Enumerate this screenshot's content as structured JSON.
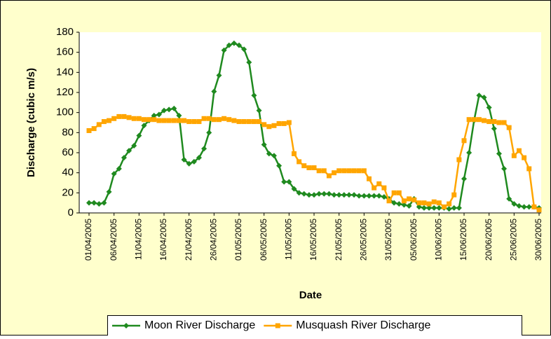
{
  "chart_data": {
    "type": "line",
    "y_label": "Discharge (cubic m/s)",
    "x_label": "Date",
    "categories": [
      "01/04/2005",
      null,
      null,
      null,
      null,
      "06/04/2005",
      null,
      null,
      null,
      null,
      "11/04/2005",
      null,
      null,
      null,
      null,
      "16/04/2005",
      null,
      null,
      null,
      null,
      "21/04/2005",
      null,
      null,
      null,
      null,
      "26/04/2005",
      null,
      null,
      null,
      null,
      "01/05/2005",
      null,
      null,
      null,
      null,
      "06/05/2005",
      null,
      null,
      null,
      null,
      "11/05/2005",
      null,
      null,
      null,
      null,
      "16/05/2005",
      null,
      null,
      null,
      null,
      "21/05/2005",
      null,
      null,
      null,
      null,
      "26/05/2005",
      null,
      null,
      null,
      null,
      "31/05/2005",
      null,
      null,
      null,
      null,
      "05/06/2005",
      null,
      null,
      null,
      null,
      "10/06/2005",
      null,
      null,
      null,
      null,
      "15/06/2005",
      null,
      null,
      null,
      null,
      "20/06/2005",
      null,
      null,
      null,
      null,
      "25/06/2005",
      null,
      null,
      null,
      null,
      "30/06/2005"
    ],
    "series": [
      {
        "name": "Moon River Discharge",
        "color": "#1f8a1f",
        "marker": "diamond",
        "values": [
          10,
          10,
          9,
          10,
          21,
          39,
          44,
          55,
          62,
          67,
          77,
          87,
          92,
          97,
          98,
          102,
          103,
          104,
          97,
          53,
          49,
          51,
          55,
          64,
          80,
          121,
          137,
          162,
          167,
          169,
          167,
          163,
          150,
          117,
          102,
          68,
          59,
          57,
          47,
          31,
          31,
          24,
          20,
          19,
          18,
          18,
          19,
          19,
          19,
          18,
          18,
          18,
          18,
          18,
          17,
          17,
          17,
          17,
          17,
          16,
          14,
          10,
          9,
          8,
          7,
          14,
          6,
          5,
          5,
          5,
          5,
          5,
          4,
          5,
          5,
          34,
          60,
          92,
          117,
          115,
          105,
          84,
          59,
          44,
          14,
          9,
          7,
          6,
          6,
          6,
          5
        ]
      },
      {
        "name": "Musquash River Discharge",
        "color": "#ffa500",
        "marker": "square",
        "values": [
          82,
          84,
          88,
          91,
          92,
          94,
          96,
          96,
          95,
          94,
          94,
          93,
          93,
          93,
          92,
          92,
          92,
          92,
          92,
          92,
          91,
          91,
          91,
          94,
          94,
          93,
          93,
          94,
          93,
          92,
          91,
          91,
          91,
          91,
          91,
          88,
          86,
          87,
          89,
          89,
          90,
          59,
          51,
          47,
          45,
          45,
          42,
          42,
          37,
          40,
          42,
          42,
          42,
          42,
          42,
          42,
          34,
          25,
          29,
          25,
          12,
          20,
          20,
          12,
          14,
          13,
          10,
          10,
          9,
          11,
          10,
          6,
          9,
          18,
          53,
          72,
          93,
          93,
          93,
          92,
          91,
          91,
          90,
          90,
          85,
          57,
          62,
          55,
          44,
          6,
          3
        ]
      }
    ],
    "ylim": [
      0,
      180
    ],
    "yticks": [
      0,
      20,
      40,
      60,
      80,
      100,
      120,
      140,
      160,
      180
    ],
    "grid": false,
    "legend": "bottom"
  }
}
